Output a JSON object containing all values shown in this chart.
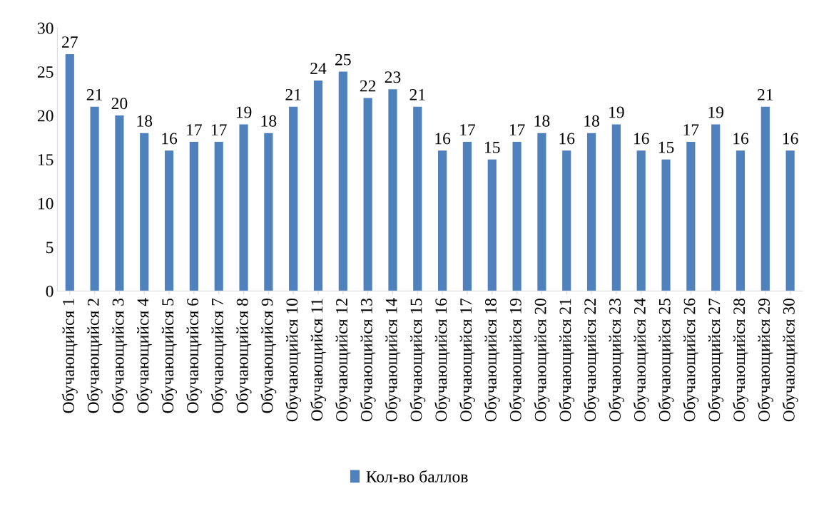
{
  "chart_data": {
    "type": "bar",
    "categories": [
      "Обучающийся 1",
      "Обучающийся 2",
      "Обучающийся 3",
      "Обучающийся 4",
      "Обучающийся 5",
      "Обучающийся 6",
      "Обучающийся 7",
      "Обучающийся 8",
      "Обучающийся 9",
      "Обучающийся 10",
      "Обучающийся 11",
      "Обучающийся 12",
      "Обучающийся 13",
      "Обучающийся 14",
      "Обучающийся 15",
      "Обучающийся 16",
      "Обучающийся 17",
      "Обучающийся 18",
      "Обучающийся 19",
      "Обучающийся 20",
      "Обучающийся 21",
      "Обучающийся 22",
      "Обучающийся 23",
      "Обучающийся 24",
      "Обучающийся 25",
      "Обучающийся 26",
      "Обучающийся 27",
      "Обучающийся 28",
      "Обучающийся 29",
      "Обучающийся 30"
    ],
    "series": [
      {
        "name": "Кол-во баллов",
        "color": "#4f81bd",
        "values": [
          27,
          21,
          20,
          18,
          16,
          17,
          17,
          19,
          18,
          21,
          24,
          25,
          22,
          23,
          21,
          16,
          17,
          15,
          17,
          18,
          16,
          18,
          19,
          16,
          15,
          17,
          19,
          16,
          21,
          16
        ]
      }
    ],
    "ylim": [
      0,
      30
    ],
    "yticks": [
      0,
      5,
      10,
      15,
      20,
      25,
      30
    ],
    "data_labels": true,
    "grid": false,
    "legend": "bottom"
  }
}
